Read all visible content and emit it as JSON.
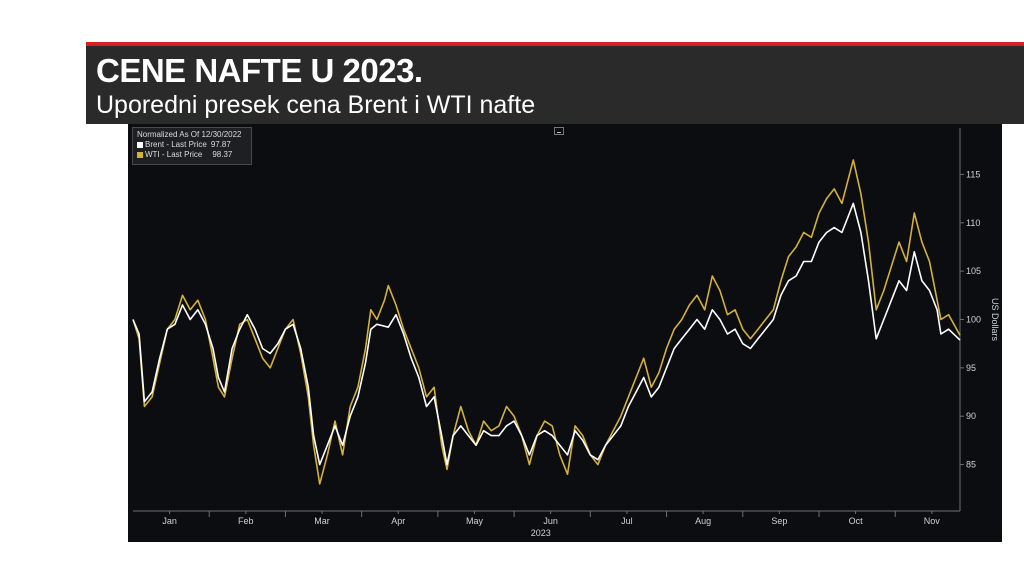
{
  "header": {
    "title": "CENE NAFTE U 2023.",
    "subtitle": "Uporedni presek cena Brent i WTI nafte"
  },
  "colors": {
    "banner_bg": "#2a2a2a",
    "banner_accent": "#d42020",
    "chart_bg": "#0b0d10",
    "brent": "#ffffff",
    "wti": "#d4b03c"
  },
  "chart_data": {
    "type": "line",
    "legend": {
      "header": "Normalized As Of 12/30/2022",
      "placement": "top-left"
    },
    "x_tick_labels": [
      "Jan",
      "Feb",
      "Mar",
      "Apr",
      "May",
      "Jun",
      "Jul",
      "Aug",
      "Sep",
      "Oct",
      "Nov"
    ],
    "x_year_label": "2023",
    "ylabel": "US Dollars",
    "y_ticks": [
      85,
      90,
      95,
      100,
      105,
      110,
      115
    ],
    "ylim": [
      80.2,
      119.8
    ],
    "xlim": [
      0,
      10.85
    ],
    "grid": false,
    "series": [
      {
        "name": "Brent - Last Price",
        "last_value_label": "97.87",
        "color": "#ffffff",
        "points": [
          [
            0,
            100
          ],
          [
            0.08,
            98.5
          ],
          [
            0.15,
            91.5
          ],
          [
            0.25,
            92.5
          ],
          [
            0.35,
            96
          ],
          [
            0.45,
            99
          ],
          [
            0.55,
            99.5
          ],
          [
            0.65,
            101.5
          ],
          [
            0.75,
            100
          ],
          [
            0.85,
            101
          ],
          [
            0.95,
            99.5
          ],
          [
            1.05,
            97
          ],
          [
            1.12,
            94
          ],
          [
            1.2,
            92.5
          ],
          [
            1.3,
            97
          ],
          [
            1.4,
            99
          ],
          [
            1.5,
            100.5
          ],
          [
            1.6,
            99
          ],
          [
            1.7,
            97
          ],
          [
            1.8,
            96.5
          ],
          [
            1.9,
            97.5
          ],
          [
            2.0,
            99
          ],
          [
            2.1,
            99.5
          ],
          [
            2.2,
            97
          ],
          [
            2.3,
            93
          ],
          [
            2.37,
            88
          ],
          [
            2.45,
            85
          ],
          [
            2.55,
            87
          ],
          [
            2.65,
            89
          ],
          [
            2.75,
            87
          ],
          [
            2.85,
            90
          ],
          [
            2.95,
            92
          ],
          [
            3.05,
            95.5
          ],
          [
            3.12,
            99
          ],
          [
            3.2,
            99.5
          ],
          [
            3.35,
            99.2
          ],
          [
            3.45,
            100.5
          ],
          [
            3.55,
            98.5
          ],
          [
            3.65,
            96
          ],
          [
            3.75,
            94
          ],
          [
            3.85,
            91
          ],
          [
            3.95,
            92
          ],
          [
            4.05,
            88
          ],
          [
            4.12,
            85
          ],
          [
            4.2,
            88
          ],
          [
            4.3,
            89
          ],
          [
            4.4,
            88
          ],
          [
            4.5,
            87
          ],
          [
            4.6,
            88.5
          ],
          [
            4.7,
            88
          ],
          [
            4.8,
            88
          ],
          [
            4.9,
            89
          ],
          [
            5.0,
            89.5
          ],
          [
            5.1,
            88
          ],
          [
            5.2,
            86
          ],
          [
            5.3,
            88
          ],
          [
            5.4,
            88.5
          ],
          [
            5.5,
            88
          ],
          [
            5.6,
            87
          ],
          [
            5.7,
            86
          ],
          [
            5.8,
            88.5
          ],
          [
            5.9,
            87.5
          ],
          [
            6.0,
            86
          ],
          [
            6.1,
            85.5
          ],
          [
            6.2,
            87
          ],
          [
            6.3,
            88
          ],
          [
            6.4,
            89
          ],
          [
            6.5,
            91
          ],
          [
            6.6,
            92.5
          ],
          [
            6.7,
            94
          ],
          [
            6.8,
            92
          ],
          [
            6.9,
            93
          ],
          [
            7.0,
            95
          ],
          [
            7.1,
            97
          ],
          [
            7.2,
            98
          ],
          [
            7.3,
            99
          ],
          [
            7.4,
            100
          ],
          [
            7.5,
            99
          ],
          [
            7.6,
            101
          ],
          [
            7.7,
            100
          ],
          [
            7.8,
            98.5
          ],
          [
            7.9,
            99
          ],
          [
            8.0,
            97.5
          ],
          [
            8.1,
            97
          ],
          [
            8.2,
            98
          ],
          [
            8.3,
            99
          ],
          [
            8.4,
            100
          ],
          [
            8.5,
            102.5
          ],
          [
            8.6,
            104
          ],
          [
            8.7,
            104.5
          ],
          [
            8.8,
            106
          ],
          [
            8.9,
            106
          ],
          [
            9.0,
            108
          ],
          [
            9.1,
            109
          ],
          [
            9.2,
            109.5
          ],
          [
            9.3,
            109
          ],
          [
            9.45,
            112
          ],
          [
            9.55,
            109
          ],
          [
            9.65,
            104
          ],
          [
            9.75,
            98
          ],
          [
            9.85,
            100
          ],
          [
            9.95,
            102
          ],
          [
            10.05,
            104
          ],
          [
            10.15,
            103
          ],
          [
            10.25,
            107
          ],
          [
            10.35,
            104
          ],
          [
            10.45,
            103
          ],
          [
            10.55,
            101
          ],
          [
            10.6,
            98.5
          ],
          [
            10.7,
            99
          ],
          [
            10.85,
            97.87
          ]
        ]
      },
      {
        "name": "WTI - Last Price",
        "last_value_label": "98.37",
        "color": "#d4b03c",
        "points": [
          [
            0,
            100
          ],
          [
            0.08,
            98
          ],
          [
            0.15,
            91
          ],
          [
            0.25,
            92
          ],
          [
            0.35,
            95.5
          ],
          [
            0.45,
            99
          ],
          [
            0.55,
            100
          ],
          [
            0.65,
            102.5
          ],
          [
            0.75,
            101
          ],
          [
            0.85,
            102
          ],
          [
            0.95,
            100
          ],
          [
            1.05,
            96
          ],
          [
            1.12,
            93
          ],
          [
            1.2,
            92
          ],
          [
            1.3,
            96
          ],
          [
            1.4,
            99.5
          ],
          [
            1.5,
            100
          ],
          [
            1.6,
            98
          ],
          [
            1.7,
            96
          ],
          [
            1.8,
            95
          ],
          [
            1.9,
            97
          ],
          [
            2.0,
            99
          ],
          [
            2.1,
            100
          ],
          [
            2.2,
            96.5
          ],
          [
            2.3,
            92
          ],
          [
            2.37,
            87
          ],
          [
            2.45,
            83
          ],
          [
            2.55,
            86
          ],
          [
            2.65,
            89.5
          ],
          [
            2.75,
            86
          ],
          [
            2.85,
            91
          ],
          [
            2.95,
            93
          ],
          [
            3.05,
            97
          ],
          [
            3.12,
            101
          ],
          [
            3.2,
            100
          ],
          [
            3.3,
            102
          ],
          [
            3.35,
            103.5
          ],
          [
            3.45,
            101.5
          ],
          [
            3.55,
            99
          ],
          [
            3.65,
            97
          ],
          [
            3.75,
            95
          ],
          [
            3.85,
            92
          ],
          [
            3.95,
            93
          ],
          [
            4.05,
            87
          ],
          [
            4.12,
            84.5
          ],
          [
            4.2,
            88
          ],
          [
            4.3,
            91
          ],
          [
            4.4,
            88.5
          ],
          [
            4.5,
            87
          ],
          [
            4.6,
            89.5
          ],
          [
            4.7,
            88.5
          ],
          [
            4.8,
            89
          ],
          [
            4.9,
            91
          ],
          [
            5.0,
            90
          ],
          [
            5.1,
            88
          ],
          [
            5.2,
            85
          ],
          [
            5.3,
            88
          ],
          [
            5.4,
            89.5
          ],
          [
            5.5,
            89
          ],
          [
            5.6,
            86
          ],
          [
            5.7,
            84
          ],
          [
            5.8,
            89
          ],
          [
            5.9,
            88
          ],
          [
            6.0,
            86
          ],
          [
            6.1,
            85
          ],
          [
            6.2,
            87
          ],
          [
            6.3,
            88.5
          ],
          [
            6.4,
            90
          ],
          [
            6.5,
            92
          ],
          [
            6.6,
            94
          ],
          [
            6.7,
            96
          ],
          [
            6.8,
            93
          ],
          [
            6.9,
            94.5
          ],
          [
            7.0,
            97
          ],
          [
            7.1,
            99
          ],
          [
            7.2,
            100
          ],
          [
            7.3,
            101.5
          ],
          [
            7.4,
            102.5
          ],
          [
            7.5,
            101
          ],
          [
            7.6,
            104.5
          ],
          [
            7.7,
            103
          ],
          [
            7.8,
            100.5
          ],
          [
            7.9,
            101
          ],
          [
            8.0,
            99
          ],
          [
            8.1,
            98
          ],
          [
            8.2,
            99
          ],
          [
            8.3,
            100
          ],
          [
            8.4,
            101
          ],
          [
            8.5,
            104
          ],
          [
            8.6,
            106.5
          ],
          [
            8.7,
            107.5
          ],
          [
            8.8,
            109
          ],
          [
            8.9,
            108.5
          ],
          [
            9.0,
            111
          ],
          [
            9.1,
            112.5
          ],
          [
            9.2,
            113.5
          ],
          [
            9.3,
            112
          ],
          [
            9.45,
            116.5
          ],
          [
            9.55,
            113
          ],
          [
            9.65,
            108
          ],
          [
            9.75,
            101
          ],
          [
            9.85,
            103
          ],
          [
            9.95,
            105.5
          ],
          [
            10.05,
            108
          ],
          [
            10.15,
            106
          ],
          [
            10.25,
            111
          ],
          [
            10.35,
            108
          ],
          [
            10.45,
            106
          ],
          [
            10.55,
            102
          ],
          [
            10.6,
            100
          ],
          [
            10.7,
            100.5
          ],
          [
            10.85,
            98.37
          ]
        ]
      }
    ]
  }
}
